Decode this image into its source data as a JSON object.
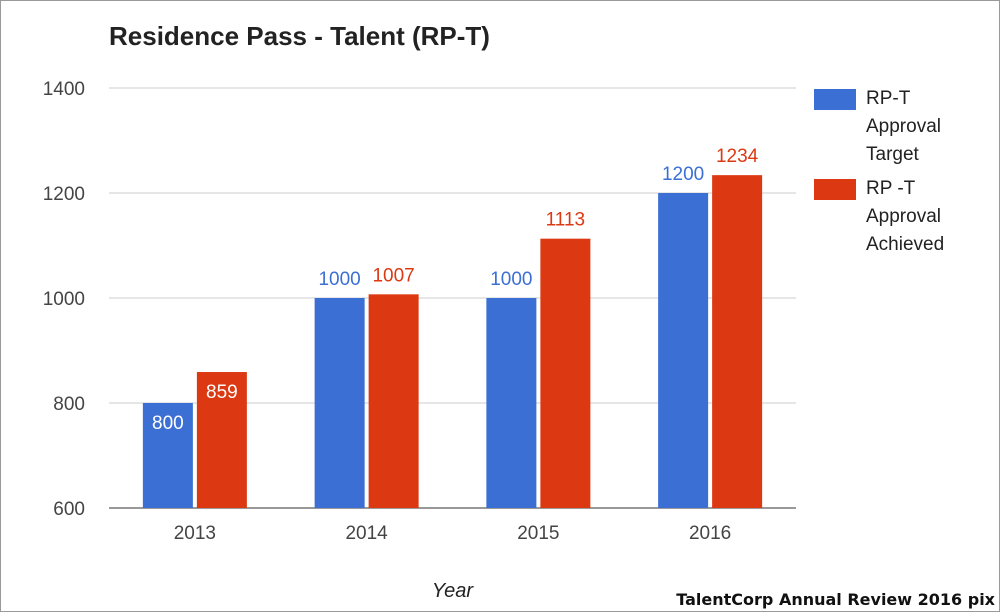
{
  "colors": {
    "target": "#3b6fd4",
    "achieved": "#dc3912"
  },
  "credit": "TalentCorp Annual Review 2016 pix",
  "chart_data": {
    "type": "bar",
    "title": "Residence Pass - Talent (RP-T)",
    "xlabel": "Year",
    "ylabel": "",
    "categories": [
      "2013",
      "2014",
      "2015",
      "2016"
    ],
    "ylim": [
      600,
      1400
    ],
    "yticks": [
      600,
      800,
      1000,
      1200,
      1400
    ],
    "grid": true,
    "legend_position": "right",
    "series": [
      {
        "name": "RP-T Approval Target",
        "legend_lines": [
          "RP-T",
          "Approval",
          "Target"
        ],
        "values": [
          800,
          1000,
          1000,
          1200
        ],
        "color": "#3b6fd4"
      },
      {
        "name": "RP -T Approval Achieved",
        "legend_lines": [
          "RP -T",
          "Approval",
          "Achieved"
        ],
        "values": [
          859,
          1007,
          1113,
          1234
        ],
        "color": "#dc3912"
      }
    ]
  }
}
